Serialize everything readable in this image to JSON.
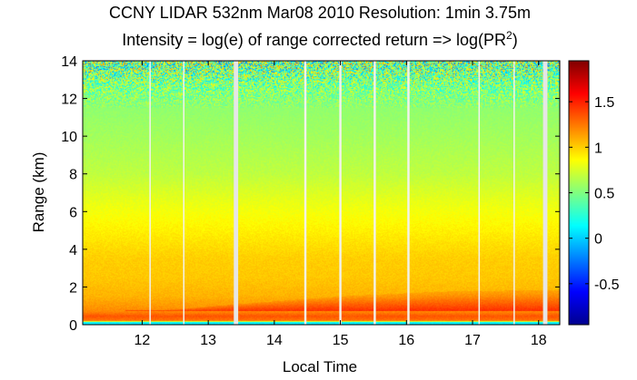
{
  "chart_data": {
    "type": "heatmap",
    "title": "CCNY LIDAR 532nm Mar08 2010 Resolution: 1min 3.75m",
    "subtitle_prefix": "Intensity = log(e) of range corrected return => log(PR",
    "subtitle_sup": "2",
    "subtitle_suffix": ")",
    "xlabel": "Local Time",
    "ylabel": "Range (km)",
    "xlim": [
      11.1,
      18.32
    ],
    "ylim": [
      0,
      14
    ],
    "x_ticks": [
      12,
      13,
      14,
      15,
      16,
      17,
      18
    ],
    "x_tick_labels": [
      "12",
      "13",
      "14",
      "15",
      "16",
      "17",
      "18"
    ],
    "y_ticks": [
      0,
      2,
      4,
      6,
      8,
      10,
      12,
      14
    ],
    "y_tick_labels": [
      "0",
      "2",
      "4",
      "6",
      "8",
      "10",
      "12",
      "14"
    ],
    "colorbar": {
      "clim": [
        -0.95,
        1.95
      ],
      "ticks": [
        -0.5,
        0,
        0.5,
        1,
        1.5
      ],
      "tick_labels": [
        "-0.5",
        "0",
        "0.5",
        "1",
        "1.5"
      ],
      "colormap": "jet"
    },
    "data_gaps": [
      {
        "time": 12.12,
        "width_min": 1,
        "fill": "#f2f2ec"
      },
      {
        "time": 12.63,
        "width_min": 1,
        "fill": "#f2f2ec"
      },
      {
        "time": 13.42,
        "width_min": 4,
        "fill": "#e6e6e6"
      },
      {
        "time": 14.47,
        "width_min": 2,
        "fill": "#f2f2ec"
      },
      {
        "time": 15.0,
        "width_min": 2,
        "fill": "#f2f2ec"
      },
      {
        "time": 15.52,
        "width_min": 2,
        "fill": "#f2f2ec"
      },
      {
        "time": 16.03,
        "width_min": 2,
        "fill": "#f2f2ec"
      },
      {
        "time": 17.1,
        "width_min": 1,
        "fill": "#f2f2ec"
      },
      {
        "time": 17.63,
        "width_min": 1,
        "fill": "#f2f2ec"
      },
      {
        "time": 18.1,
        "width_min": 4,
        "fill": "#e6e6e6"
      }
    ],
    "intensity_profile": [
      {
        "range_km": 0.0,
        "value": 0.1
      },
      {
        "range_km": 0.12,
        "value": 0.1
      },
      {
        "range_km": 0.2,
        "value": 1.25
      },
      {
        "range_km": 0.45,
        "value": 1.35
      },
      {
        "range_km": 0.7,
        "value": 1.2
      },
      {
        "range_km": 1.5,
        "value": 1.08
      },
      {
        "range_km": 2.5,
        "value": 1.02
      },
      {
        "range_km": 3.5,
        "value": 1.0
      },
      {
        "range_km": 5.0,
        "value": 0.9
      },
      {
        "range_km": 6.5,
        "value": 0.8
      },
      {
        "range_km": 8.0,
        "value": 0.68
      },
      {
        "range_km": 10.0,
        "value": 0.6
      },
      {
        "range_km": 11.5,
        "value": 0.55
      },
      {
        "range_km": 12.5,
        "value": 0.5
      },
      {
        "range_km": 14.0,
        "value": 0.45
      }
    ],
    "boundary_layer_top_km": [
      {
        "time": 11.1,
        "value": 0.7
      },
      {
        "time": 12.5,
        "value": 0.8
      },
      {
        "time": 13.5,
        "value": 1.1
      },
      {
        "time": 15.0,
        "value": 1.5
      },
      {
        "time": 16.5,
        "value": 1.75
      },
      {
        "time": 18.32,
        "value": 1.85
      }
    ],
    "noise_onset_km": 11.5
  }
}
